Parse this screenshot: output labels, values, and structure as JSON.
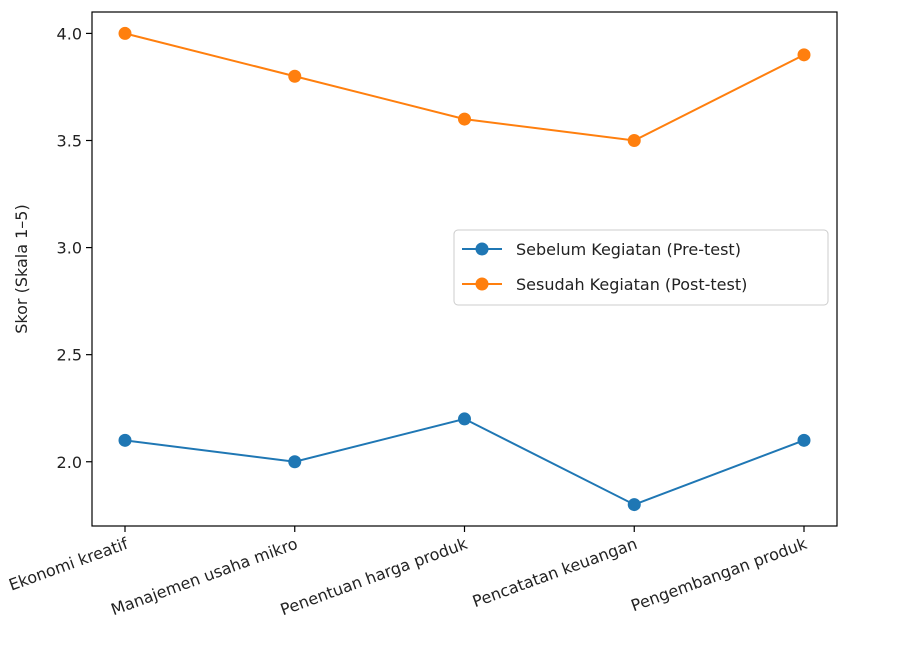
{
  "chart_data": {
    "type": "line",
    "categories": [
      "Ekonomi kreatif",
      "Manajemen usaha mikro",
      "Penentuan harga produk",
      "Pencatatan keuangan",
      "Pengembangan produk"
    ],
    "series": [
      {
        "name": "Sebelum Kegiatan (Pre-test)",
        "values": [
          2.1,
          2.0,
          2.2,
          1.8,
          2.1
        ],
        "color": "#1f77b4"
      },
      {
        "name": "Sesudah Kegiatan (Post-test)",
        "values": [
          4.0,
          3.8,
          3.6,
          3.5,
          3.9
        ],
        "color": "#ff7f0e"
      }
    ],
    "ylabel": "Skor (Skala 1–5)",
    "ylim": [
      1.7,
      4.1
    ],
    "yticks": [
      2.0,
      2.5,
      3.0,
      3.5,
      4.0
    ],
    "ytick_labels": [
      "2.0",
      "2.5",
      "3.0",
      "3.5",
      "4.0"
    ],
    "legend_position": "center-right",
    "grid": false
  }
}
